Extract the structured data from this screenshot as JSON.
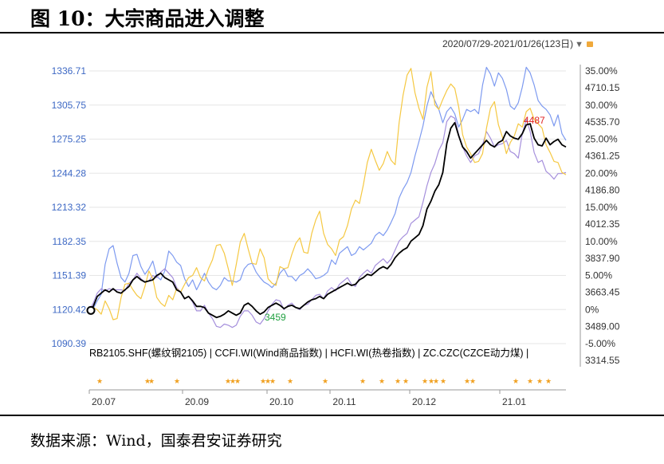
{
  "figure": {
    "title": "图 10：大宗商品进入调整",
    "source": "数据来源：Wind，国泰君安证券研究",
    "date_range": "2020/07/29-2021/01/26(123日)"
  },
  "colors": {
    "rb": "#000000",
    "ccfi": "#7d9af0",
    "hcfi": "#a58fdc",
    "zc": "#f5c842",
    "left_axis": "#3d68c4",
    "right_axis": "#333333",
    "marker_star": "#f0a020",
    "max_label": "#e02020",
    "min_label": "#20a040",
    "grid": "#e6e6e6"
  },
  "chart_data": {
    "type": "line",
    "x_ticks": [
      "20.07",
      "20.09",
      "20.10",
      "20.11",
      "20.12",
      "21.01"
    ],
    "left_axis": {
      "ticks": [
        "1336.71",
        "1305.75",
        "1275.25",
        "1244.28",
        "1213.32",
        "1182.35",
        "1151.39",
        "1120.42",
        "1090.39"
      ],
      "ylim": [
        1090.39,
        1336.71
      ]
    },
    "right_axis": {
      "ticks": [
        "35.00%",
        "4710.15",
        "30.00%",
        "4535.70",
        "25.00%",
        "4361.25",
        "20.00%",
        "4186.80",
        "15.00%",
        "4012.35",
        "10.00%",
        "3837.90",
        "5.00%",
        "3663.45",
        "0%",
        "3489.00",
        "-5.00%",
        "3314.55"
      ],
      "price_lim": [
        3314.55,
        4710.15
      ],
      "pct_lim": [
        -5,
        35
      ]
    },
    "legend": "RB2105.SHF(螺纹钢2105) | CCFI.WI(Wind商品指数) | HCFI.WI(热卷指数) | ZC.CZC(CZCE动力煤) |",
    "annotations": {
      "max_label": "4487",
      "min_label": "3459"
    },
    "series": [
      {
        "key": "ccfi",
        "values": [
          1120.4,
          1122,
          1129,
          1135,
          1162,
          1176,
          1179,
          1163,
          1150,
          1146,
          1154,
          1170,
          1171,
          1160,
          1153,
          1158,
          1165,
          1151,
          1148,
          1156,
          1174,
          1170,
          1164,
          1161,
          1149,
          1142,
          1148,
          1139,
          1146,
          1154,
          1146,
          1141,
          1139,
          1143,
          1150,
          1147,
          1147,
          1146,
          1148,
          1158,
          1162,
          1163,
          1155,
          1150,
          1146,
          1144,
          1141,
          1145,
          1154,
          1158,
          1151,
          1151,
          1147,
          1152,
          1154,
          1158,
          1154,
          1149,
          1150,
          1152,
          1155,
          1166,
          1162,
          1172,
          1175,
          1178,
          1170,
          1172,
          1178,
          1175,
          1178,
          1181,
          1188,
          1191,
          1188,
          1193,
          1200,
          1208,
          1222,
          1230,
          1236,
          1245,
          1260,
          1273,
          1287,
          1305,
          1318,
          1310,
          1302,
          1290,
          1300,
          1304,
          1298,
          1286,
          1293,
          1302,
          1300,
          1302,
          1298,
          1324,
          1340,
          1334,
          1323,
          1335,
          1330,
          1320,
          1305,
          1302,
          1308,
          1322,
          1340,
          1335,
          1324,
          1310,
          1305,
          1302,
          1297,
          1287,
          1297,
          1280,
          1274
        ]
      },
      {
        "key": "hcfi",
        "values": [
          1120.4,
          1127,
          1136,
          1140,
          1138,
          1140,
          1139,
          1139,
          1139,
          1138,
          1145,
          1148,
          1154,
          1149,
          1146,
          1147,
          1152,
          1150,
          1155,
          1158,
          1154,
          1150,
          1141,
          1137,
          1131,
          1133,
          1128,
          1120,
          1120,
          1125,
          1118,
          1113,
          1106,
          1105,
          1108,
          1107,
          1105,
          1107,
          1115,
          1120,
          1120,
          1116,
          1110,
          1108,
          1113,
          1120,
          1126,
          1130,
          1129,
          1121,
          1125,
          1127,
          1123,
          1121,
          1125,
          1126,
          1130,
          1134,
          1135,
          1131,
          1138,
          1141,
          1138,
          1144,
          1147,
          1150,
          1144,
          1142,
          1150,
          1154,
          1157,
          1154,
          1161,
          1164,
          1167,
          1163,
          1167,
          1175,
          1183,
          1187,
          1190,
          1199,
          1202,
          1205,
          1218,
          1233,
          1245,
          1253,
          1265,
          1272,
          1291,
          1296,
          1294,
          1279,
          1268,
          1260,
          1254,
          1260,
          1262,
          1270,
          1282,
          1276,
          1268,
          1270,
          1271,
          1274,
          1264,
          1262,
          1258,
          1280,
          1293,
          1282,
          1263,
          1254,
          1256,
          1246,
          1243,
          1239,
          1244,
          1244,
          1245
        ]
      },
      {
        "key": "zc",
        "values": [
          1120,
          1123,
          1121,
          1117,
          1129,
          1122,
          1112,
          1113,
          1132,
          1144,
          1145,
          1139,
          1134,
          1131,
          1142,
          1156,
          1149,
          1132,
          1127,
          1124,
          1134,
          1130,
          1140,
          1137,
          1144,
          1150,
          1152,
          1159,
          1150,
          1147,
          1158,
          1166,
          1179,
          1180,
          1172,
          1158,
          1143,
          1162,
          1182,
          1190,
          1176,
          1163,
          1162,
          1176,
          1168,
          1149,
          1145,
          1143,
          1160,
          1158,
          1159,
          1171,
          1181,
          1186,
          1173,
          1172,
          1190,
          1202,
          1210,
          1190,
          1180,
          1176,
          1170,
          1184,
          1187,
          1197,
          1212,
          1220,
          1217,
          1234,
          1254,
          1266,
          1256,
          1247,
          1253,
          1264,
          1256,
          1252,
          1290,
          1315,
          1333,
          1339,
          1317,
          1303,
          1293,
          1322,
          1336,
          1306,
          1302,
          1311,
          1319,
          1325,
          1321,
          1304,
          1279,
          1268,
          1262,
          1254,
          1255,
          1262,
          1285,
          1303,
          1309,
          1288,
          1277,
          1262,
          1272,
          1278,
          1289,
          1286,
          1300,
          1303,
          1293,
          1289,
          1285,
          1270,
          1263,
          1255,
          1254,
          1245,
          1243
        ]
      },
      {
        "key": "rb",
        "values": [
          1120.4,
          1124,
          1133,
          1136,
          1139,
          1137,
          1140,
          1137,
          1136,
          1139,
          1142,
          1148,
          1151,
          1148,
          1146,
          1147,
          1148,
          1152,
          1154,
          1150,
          1148,
          1146,
          1139,
          1137,
          1131,
          1133,
          1129,
          1124,
          1124,
          1123,
          1118,
          1116,
          1114,
          1115,
          1117,
          1120,
          1118,
          1116,
          1118,
          1125,
          1127,
          1124,
          1120,
          1117,
          1119,
          1123,
          1125,
          1127,
          1125,
          1122,
          1124,
          1125,
          1123,
          1122,
          1125,
          1128,
          1130,
          1131,
          1133,
          1131,
          1135,
          1137,
          1139,
          1141,
          1143,
          1145,
          1143,
          1144,
          1148,
          1150,
          1153,
          1152,
          1155,
          1158,
          1160,
          1158,
          1162,
          1168,
          1172,
          1175,
          1177,
          1183,
          1186,
          1189,
          1197,
          1212,
          1219,
          1228,
          1234,
          1245,
          1271,
          1285,
          1290,
          1278,
          1268,
          1264,
          1258,
          1262,
          1266,
          1270,
          1274,
          1270,
          1268,
          1272,
          1274,
          1282,
          1278,
          1276,
          1275,
          1280,
          1288,
          1289,
          1276,
          1270,
          1269,
          1276,
          1270,
          1273,
          1275,
          1270,
          1268
        ]
      }
    ]
  }
}
